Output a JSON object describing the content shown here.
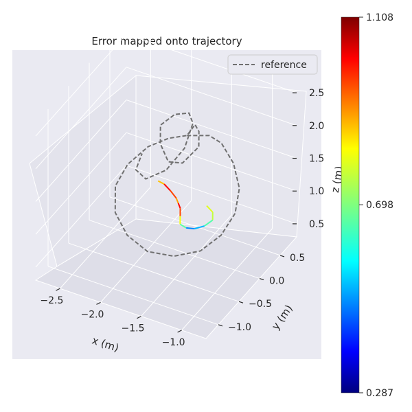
{
  "chart_data": {
    "type": "line",
    "projection": "3d",
    "title": "Error mapped onto trajectory",
    "xlabel": "x (m)",
    "ylabel": "y (m)",
    "zlabel": "z (m)",
    "x_ticks": [
      "−2.5",
      "−2.0",
      "−1.5",
      "−1.0"
    ],
    "y_ticks": [
      "0.5",
      "0.0",
      "−0.5",
      "−1.0"
    ],
    "z_ticks": [
      "0.5",
      "1.0",
      "1.5",
      "2.0",
      "2.5"
    ],
    "xlim": [
      -2.8,
      -0.7
    ],
    "ylim": [
      -1.3,
      0.9
    ],
    "zlim": [
      0.3,
      2.7
    ],
    "legend": {
      "position": "top-right",
      "entries": [
        "reference"
      ]
    },
    "grid": true,
    "series": [
      {
        "name": "reference",
        "style": "dashed",
        "color": "#707070",
        "points": [
          [
            -1.9,
            0.6,
            1.55
          ],
          [
            -1.65,
            0.65,
            1.62
          ],
          [
            -1.45,
            0.55,
            1.66
          ],
          [
            -1.2,
            0.35,
            1.6
          ],
          [
            -1.0,
            0.1,
            1.48
          ],
          [
            -0.9,
            -0.2,
            1.35
          ],
          [
            -0.92,
            -0.5,
            1.22
          ],
          [
            -1.05,
            -0.75,
            1.1
          ],
          [
            -1.3,
            -0.9,
            1.02
          ],
          [
            -1.6,
            -0.95,
            1.0
          ],
          [
            -1.9,
            -0.85,
            1.05
          ],
          [
            -2.15,
            -0.65,
            1.15
          ],
          [
            -2.3,
            -0.35,
            1.28
          ],
          [
            -2.3,
            -0.05,
            1.4
          ],
          [
            -2.2,
            0.25,
            1.5
          ],
          [
            -2.05,
            0.45,
            1.55
          ],
          [
            -1.9,
            0.6,
            1.55
          ],
          [
            -1.75,
            0.5,
            1.85
          ],
          [
            -1.6,
            0.3,
            1.95
          ],
          [
            -1.5,
            0.1,
            1.9
          ],
          [
            -1.6,
            -0.1,
            1.75
          ],
          [
            -1.8,
            -0.05,
            1.65
          ],
          [
            -2.0,
            0.15,
            1.7
          ],
          [
            -2.1,
            0.35,
            1.8
          ],
          [
            -2.0,
            0.5,
            1.9
          ],
          [
            -1.85,
            0.55,
            1.95
          ],
          [
            -1.7,
            0.35,
            2.0
          ],
          [
            -1.65,
            0.05,
            1.85
          ],
          [
            -1.75,
            -0.2,
            1.65
          ],
          [
            -1.95,
            -0.3,
            1.5
          ],
          [
            -2.15,
            -0.15,
            1.45
          ],
          [
            -2.2,
            0.1,
            1.5
          ]
        ]
      },
      {
        "name": "",
        "style": "solid",
        "colormap": "jet",
        "points": [
          [
            -1.9,
            -0.1,
            1.35,
            0.75
          ],
          [
            -1.8,
            -0.15,
            1.38,
            0.95
          ],
          [
            -1.7,
            -0.2,
            1.36,
            1.05
          ],
          [
            -1.6,
            -0.25,
            1.32,
            0.85
          ],
          [
            -1.55,
            -0.3,
            1.3,
            0.9
          ],
          [
            -1.5,
            -0.35,
            1.28,
            1.1
          ],
          [
            -1.45,
            -0.45,
            1.25,
            0.8
          ],
          [
            -1.4,
            -0.55,
            1.22,
            0.78
          ],
          [
            -1.3,
            -0.6,
            1.24,
            0.55
          ],
          [
            -1.2,
            -0.6,
            1.27,
            0.45
          ],
          [
            -1.1,
            -0.55,
            1.32,
            0.62
          ],
          [
            -1.05,
            -0.45,
            1.36,
            0.7
          ],
          [
            -1.1,
            -0.35,
            1.39,
            0.8
          ],
          [
            -1.2,
            -0.3,
            1.41,
            0.75
          ]
        ]
      }
    ],
    "colorbar": {
      "cmap": "jet",
      "min": 0.287,
      "max": 1.108,
      "ticks": [
        "0.287",
        "0.698",
        "1.108"
      ]
    }
  }
}
